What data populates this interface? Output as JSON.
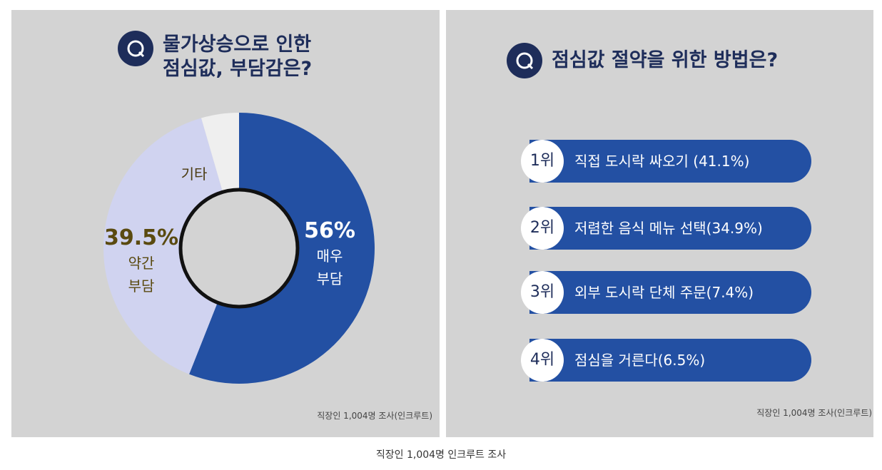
{
  "chart_data": {
    "type": "pie",
    "donut": true,
    "title": [
      "물가상승으로 인한",
      "점심값, 부담감은?"
    ],
    "categories": [
      "매우 부담",
      "약간 부담",
      "기타"
    ],
    "values": [
      56,
      39.5,
      4.5
    ],
    "value_labels": [
      "56%",
      "39.5%",
      null
    ],
    "colors": [
      "#2350a3",
      "#d0d3f0",
      "#efefef"
    ],
    "source": "직장인 1,004명 조사(인크루트)"
  },
  "ranking": {
    "title": "점심값 절약을 위한 방법은?",
    "items": [
      {
        "rank": "1위",
        "text": "직접 도시락 싸오기 (41.1%)"
      },
      {
        "rank": "2위",
        "text": "저렴한 음식 메뉴 선택(34.9%)"
      },
      {
        "rank": "3위",
        "text": "외부 도시락 단체 주문(7.4%)"
      },
      {
        "rank": "4위",
        "text": "점심을 거른다(6.5%)"
      }
    ],
    "source": "직장인 1,004명 조사(인크루트)"
  },
  "caption": "직장인 1,004명 인크루트 조사"
}
